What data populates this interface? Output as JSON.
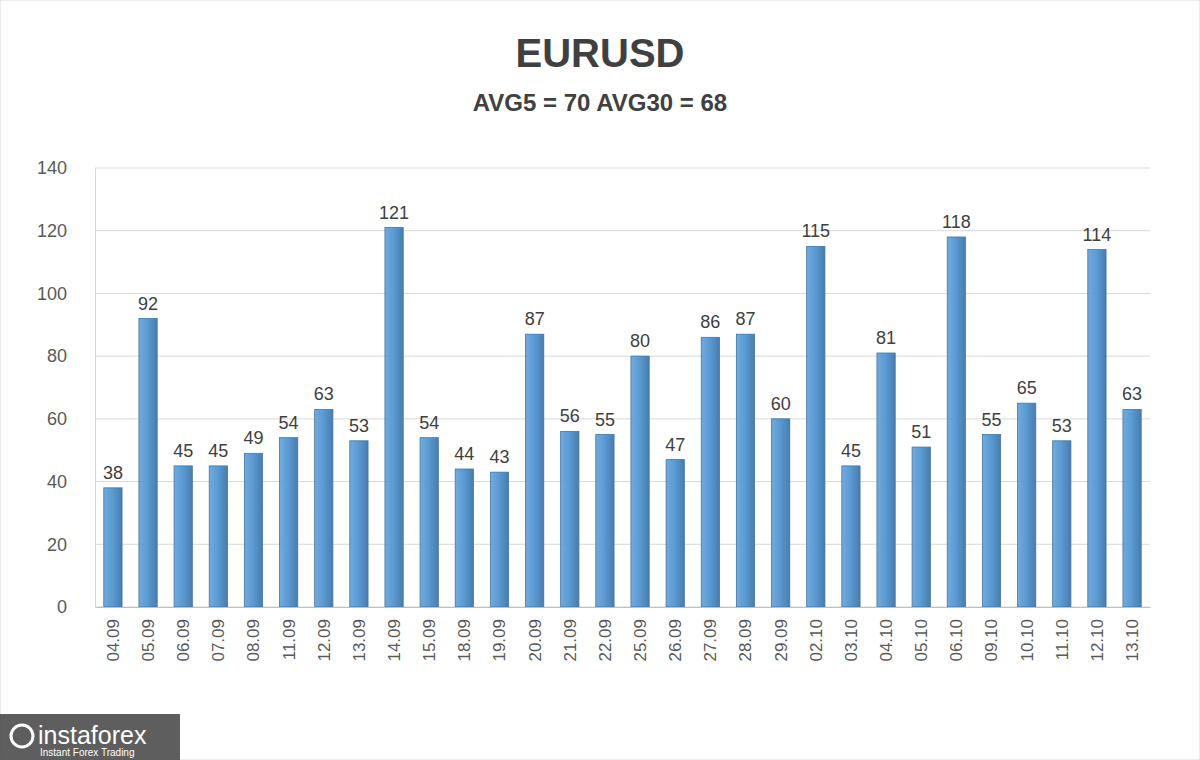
{
  "chart_data": {
    "type": "bar",
    "title": "EURUSD",
    "subtitle": "AVG5 = 70 AVG30 = 68",
    "categories": [
      "04.09",
      "05.09",
      "06.09",
      "07.09",
      "08.09",
      "11.09",
      "12.09",
      "13.09",
      "14.09",
      "15.09",
      "18.09",
      "19.09",
      "20.09",
      "21.09",
      "22.09",
      "25.09",
      "26.09",
      "27.09",
      "28.09",
      "29.09",
      "02.10",
      "03.10",
      "04.10",
      "05.10",
      "06.10",
      "09.10",
      "10.10",
      "11.10",
      "12.10",
      "13.10"
    ],
    "values": [
      38,
      92,
      45,
      45,
      49,
      54,
      63,
      53,
      121,
      54,
      44,
      43,
      87,
      56,
      55,
      80,
      47,
      86,
      87,
      60,
      115,
      45,
      81,
      51,
      118,
      55,
      65,
      53,
      114,
      63
    ],
    "color": "#5b9bd5",
    "ylim": [
      0,
      140
    ],
    "yticks": [
      0,
      20,
      40,
      60,
      80,
      100,
      120,
      140
    ],
    "grid": true,
    "data_labels": true,
    "annotations": [
      "instaforex",
      "Instant Forex Trading"
    ]
  }
}
